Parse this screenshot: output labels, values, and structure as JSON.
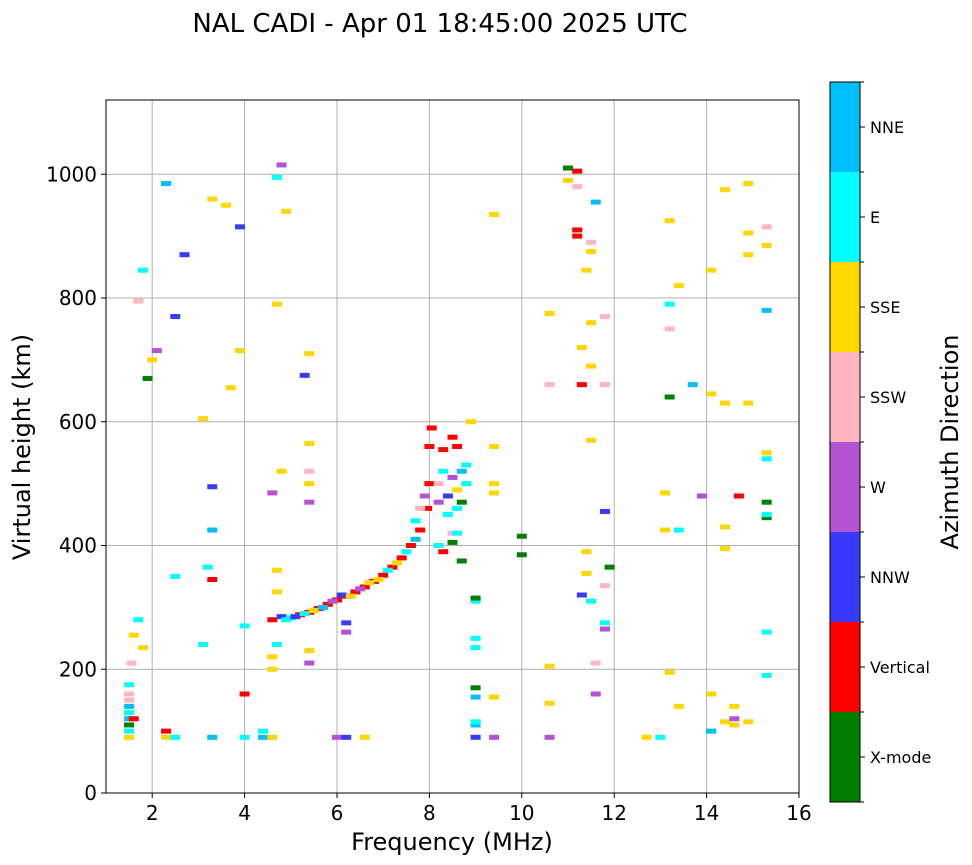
{
  "chart_data": {
    "type": "scatter",
    "title": "NAL CADI - Apr 01 18:45:00 2025 UTC",
    "xlabel": "Frequency (MHz)",
    "ylabel": "Virtual height (km)",
    "xlim": [
      1,
      16
    ],
    "ylim": [
      0,
      1120
    ],
    "xticks": [
      2,
      4,
      6,
      8,
      10,
      12,
      14,
      16
    ],
    "yticks": [
      0,
      200,
      400,
      600,
      800,
      1000
    ],
    "grid": true,
    "colorbar": {
      "label": "Azimuth Direction",
      "categories": [
        {
          "name": "X-mode",
          "color": "#008000"
        },
        {
          "name": "Vertical",
          "color": "#ff0000"
        },
        {
          "name": "NNW",
          "color": "#3a3aff"
        },
        {
          "name": "W",
          "color": "#b452d4"
        },
        {
          "name": "SSW",
          "color": "#ffb6c1"
        },
        {
          "name": "SSE",
          "color": "#ffd700"
        },
        {
          "name": "E",
          "color": "#00ffff"
        },
        {
          "name": "NNE",
          "color": "#00bfff"
        }
      ]
    },
    "points": [
      [
        4.6,
        280,
        "Vertical"
      ],
      [
        4.8,
        285,
        "NNW"
      ],
      [
        5.0,
        283,
        "E"
      ],
      [
        5.2,
        288,
        "Vertical"
      ],
      [
        5.4,
        292,
        "Vertical"
      ],
      [
        5.6,
        298,
        "Vertical"
      ],
      [
        5.8,
        305,
        "Vertical"
      ],
      [
        6.0,
        312,
        "Vertical"
      ],
      [
        6.2,
        318,
        "Vertical"
      ],
      [
        6.4,
        325,
        "Vertical"
      ],
      [
        6.6,
        333,
        "Vertical"
      ],
      [
        6.8,
        342,
        "Vertical"
      ],
      [
        7.0,
        352,
        "Vertical"
      ],
      [
        7.2,
        365,
        "Vertical"
      ],
      [
        7.4,
        380,
        "Vertical"
      ],
      [
        7.6,
        400,
        "Vertical"
      ],
      [
        7.8,
        425,
        "Vertical"
      ],
      [
        7.95,
        460,
        "Vertical"
      ],
      [
        8.0,
        500,
        "Vertical"
      ],
      [
        8.0,
        560,
        "Vertical"
      ],
      [
        8.05,
        590,
        "Vertical"
      ],
      [
        4.9,
        280,
        "E"
      ],
      [
        5.1,
        285,
        "NNW"
      ],
      [
        5.3,
        290,
        "E"
      ],
      [
        5.5,
        295,
        "SSE"
      ],
      [
        5.7,
        300,
        "NNE"
      ],
      [
        5.9,
        310,
        "W"
      ],
      [
        6.1,
        320,
        "NNW"
      ],
      [
        6.3,
        318,
        "SSE"
      ],
      [
        6.5,
        330,
        "W"
      ],
      [
        6.7,
        340,
        "SSE"
      ],
      [
        6.9,
        345,
        "SSE"
      ],
      [
        7.1,
        360,
        "E"
      ],
      [
        7.3,
        372,
        "SSE"
      ],
      [
        7.5,
        390,
        "E"
      ],
      [
        7.7,
        410,
        "NNE"
      ],
      [
        7.7,
        440,
        "E"
      ],
      [
        7.8,
        460,
        "SSW"
      ],
      [
        7.9,
        480,
        "W"
      ],
      [
        8.2,
        470,
        "W"
      ],
      [
        8.2,
        500,
        "SSW"
      ],
      [
        8.3,
        520,
        "E"
      ],
      [
        8.4,
        450,
        "E"
      ],
      [
        8.4,
        480,
        "NNW"
      ],
      [
        8.5,
        420,
        "SSW"
      ],
      [
        8.5,
        510,
        "W"
      ],
      [
        8.6,
        460,
        "E"
      ],
      [
        8.6,
        490,
        "SSE"
      ],
      [
        8.7,
        470,
        "X-mode"
      ],
      [
        8.7,
        520,
        "NNE"
      ],
      [
        8.8,
        500,
        "E"
      ],
      [
        8.2,
        400,
        "E"
      ],
      [
        8.3,
        390,
        "Vertical"
      ],
      [
        8.5,
        405,
        "X-mode"
      ],
      [
        8.6,
        420,
        "E"
      ],
      [
        8.7,
        375,
        "X-mode"
      ],
      [
        8.5,
        575,
        "Vertical"
      ],
      [
        8.6,
        560,
        "Vertical"
      ],
      [
        8.3,
        555,
        "Vertical"
      ],
      [
        8.9,
        600,
        "SSE"
      ],
      [
        8.8,
        530,
        "E"
      ],
      [
        1.5,
        90,
        "SSE"
      ],
      [
        1.5,
        100,
        "E"
      ],
      [
        1.5,
        110,
        "X-mode"
      ],
      [
        1.5,
        120,
        "NNE"
      ],
      [
        1.5,
        130,
        "E"
      ],
      [
        1.5,
        140,
        "NNE"
      ],
      [
        1.5,
        150,
        "SSW"
      ],
      [
        1.5,
        160,
        "SSW"
      ],
      [
        1.5,
        175,
        "E"
      ],
      [
        1.6,
        120,
        "Vertical"
      ],
      [
        1.55,
        210,
        "SSW"
      ],
      [
        1.6,
        255,
        "SSE"
      ],
      [
        2.3,
        100,
        "Vertical"
      ],
      [
        2.3,
        90,
        "SSE"
      ],
      [
        2.5,
        90,
        "E"
      ],
      [
        3.3,
        90,
        "NNE"
      ],
      [
        3.1,
        240,
        "E"
      ],
      [
        3.3,
        345,
        "Vertical"
      ],
      [
        3.3,
        425,
        "NNE"
      ],
      [
        3.3,
        495,
        "NNW"
      ],
      [
        4.0,
        90,
        "E"
      ],
      [
        4.0,
        160,
        "Vertical"
      ],
      [
        4.0,
        270,
        "E"
      ],
      [
        4.4,
        100,
        "E"
      ],
      [
        4.4,
        90,
        "NNE"
      ],
      [
        4.6,
        90,
        "SSE"
      ],
      [
        4.6,
        200,
        "SSE"
      ],
      [
        4.6,
        220,
        "SSE"
      ],
      [
        4.7,
        240,
        "E"
      ],
      [
        4.7,
        360,
        "SSE"
      ],
      [
        4.7,
        325,
        "SSE"
      ],
      [
        5.4,
        210,
        "W"
      ],
      [
        5.4,
        230,
        "SSE"
      ],
      [
        5.4,
        500,
        "SSE"
      ],
      [
        5.4,
        520,
        "SSW"
      ],
      [
        6.0,
        90,
        "W"
      ],
      [
        6.2,
        90,
        "NNW"
      ],
      [
        6.2,
        275,
        "NNW"
      ],
      [
        6.2,
        260,
        "W"
      ],
      [
        6.6,
        90,
        "SSE"
      ],
      [
        9.0,
        90,
        "NNW"
      ],
      [
        9.0,
        110,
        "NNE"
      ],
      [
        9.0,
        115,
        "E"
      ],
      [
        9.0,
        155,
        "NNE"
      ],
      [
        9.0,
        170,
        "X-mode"
      ],
      [
        9.0,
        235,
        "E"
      ],
      [
        9.0,
        250,
        "E"
      ],
      [
        9.0,
        310,
        "E"
      ],
      [
        9.0,
        315,
        "X-mode"
      ],
      [
        9.4,
        90,
        "W"
      ],
      [
        9.4,
        155,
        "SSE"
      ],
      [
        9.4,
        485,
        "SSE"
      ],
      [
        9.4,
        500,
        "SSE"
      ],
      [
        9.4,
        560,
        "SSE"
      ],
      [
        10.0,
        385,
        "X-mode"
      ],
      [
        10.0,
        415,
        "X-mode"
      ],
      [
        10.6,
        90,
        "W"
      ],
      [
        10.6,
        145,
        "SSE"
      ],
      [
        10.6,
        205,
        "SSE"
      ],
      [
        10.6,
        660,
        "SSW"
      ],
      [
        10.6,
        775,
        "SSE"
      ],
      [
        11.0,
        1010,
        "X-mode"
      ],
      [
        11.0,
        990,
        "SSE"
      ],
      [
        11.2,
        1005,
        "Vertical"
      ],
      [
        11.2,
        980,
        "SSW"
      ],
      [
        11.2,
        910,
        "Vertical"
      ],
      [
        11.2,
        900,
        "Vertical"
      ],
      [
        11.3,
        660,
        "Vertical"
      ],
      [
        11.3,
        720,
        "SSE"
      ],
      [
        11.4,
        390,
        "SSE"
      ],
      [
        11.4,
        355,
        "SSE"
      ],
      [
        11.5,
        310,
        "E"
      ],
      [
        11.3,
        320,
        "NNW"
      ],
      [
        11.6,
        160,
        "W"
      ],
      [
        11.6,
        210,
        "SSW"
      ],
      [
        11.8,
        275,
        "E"
      ],
      [
        11.8,
        265,
        "W"
      ],
      [
        11.8,
        335,
        "SSW"
      ],
      [
        11.8,
        455,
        "NNW"
      ],
      [
        11.9,
        365,
        "X-mode"
      ],
      [
        11.8,
        660,
        "SSW"
      ],
      [
        11.8,
        770,
        "SSW"
      ],
      [
        11.5,
        570,
        "SSE"
      ],
      [
        11.5,
        690,
        "SSE"
      ],
      [
        11.5,
        760,
        "SSE"
      ],
      [
        11.4,
        845,
        "SSE"
      ],
      [
        11.5,
        875,
        "SSE"
      ],
      [
        11.5,
        890,
        "SSW"
      ],
      [
        11.6,
        955,
        "NNE"
      ],
      [
        12.7,
        90,
        "SSE"
      ],
      [
        13.0,
        90,
        "E"
      ],
      [
        13.1,
        425,
        "SSE"
      ],
      [
        13.1,
        485,
        "SSE"
      ],
      [
        13.2,
        195,
        "SSE"
      ],
      [
        13.2,
        640,
        "X-mode"
      ],
      [
        13.2,
        750,
        "SSW"
      ],
      [
        13.2,
        790,
        "E"
      ],
      [
        13.2,
        925,
        "SSE"
      ],
      [
        13.4,
        140,
        "SSE"
      ],
      [
        13.4,
        425,
        "E"
      ],
      [
        13.4,
        820,
        "SSE"
      ],
      [
        13.7,
        660,
        "NNE"
      ],
      [
        13.9,
        480,
        "W"
      ],
      [
        14.1,
        100,
        "NNE"
      ],
      [
        14.1,
        160,
        "SSE"
      ],
      [
        14.1,
        645,
        "SSE"
      ],
      [
        14.1,
        845,
        "SSE"
      ],
      [
        14.4,
        115,
        "SSE"
      ],
      [
        14.4,
        395,
        "SSE"
      ],
      [
        14.4,
        430,
        "SSE"
      ],
      [
        14.4,
        630,
        "SSE"
      ],
      [
        14.4,
        975,
        "SSE"
      ],
      [
        14.6,
        110,
        "SSE"
      ],
      [
        14.6,
        120,
        "W"
      ],
      [
        14.6,
        140,
        "SSE"
      ],
      [
        14.7,
        480,
        "Vertical"
      ],
      [
        14.9,
        115,
        "SSE"
      ],
      [
        14.9,
        630,
        "SSE"
      ],
      [
        14.9,
        870,
        "SSE"
      ],
      [
        14.9,
        905,
        "SSE"
      ],
      [
        14.9,
        985,
        "SSE"
      ],
      [
        15.3,
        190,
        "E"
      ],
      [
        15.3,
        260,
        "E"
      ],
      [
        15.3,
        445,
        "X-mode"
      ],
      [
        15.3,
        450,
        "E"
      ],
      [
        15.3,
        470,
        "X-mode"
      ],
      [
        15.3,
        540,
        "E"
      ],
      [
        15.3,
        550,
        "SSE"
      ],
      [
        15.3,
        780,
        "NNE"
      ],
      [
        15.3,
        885,
        "SSE"
      ],
      [
        15.3,
        915,
        "SSW"
      ],
      [
        2.3,
        985,
        "NNE"
      ],
      [
        2.7,
        870,
        "NNW"
      ],
      [
        3.3,
        960,
        "SSE"
      ],
      [
        3.6,
        950,
        "SSE"
      ],
      [
        3.9,
        915,
        "NNW"
      ],
      [
        4.7,
        995,
        "E"
      ],
      [
        4.8,
        1015,
        "W"
      ],
      [
        4.9,
        940,
        "SSE"
      ],
      [
        4.7,
        790,
        "SSE"
      ],
      [
        5.3,
        675,
        "NNW"
      ],
      [
        5.4,
        710,
        "SSE"
      ],
      [
        5.4,
        565,
        "SSE"
      ],
      [
        5.4,
        470,
        "W"
      ],
      [
        4.6,
        485,
        "W"
      ],
      [
        4.8,
        520,
        "SSE"
      ],
      [
        3.7,
        655,
        "SSE"
      ],
      [
        3.9,
        715,
        "SSE"
      ],
      [
        3.1,
        605,
        "SSE"
      ],
      [
        2.5,
        770,
        "NNW"
      ],
      [
        2.1,
        715,
        "W"
      ],
      [
        2.0,
        700,
        "SSE"
      ],
      [
        1.9,
        670,
        "X-mode"
      ],
      [
        1.8,
        845,
        "E"
      ],
      [
        1.7,
        795,
        "SSW"
      ],
      [
        1.7,
        280,
        "E"
      ],
      [
        1.8,
        235,
        "SSE"
      ],
      [
        2.5,
        350,
        "E"
      ],
      [
        3.2,
        365,
        "E"
      ],
      [
        9.4,
        935,
        "SSE"
      ]
    ]
  }
}
